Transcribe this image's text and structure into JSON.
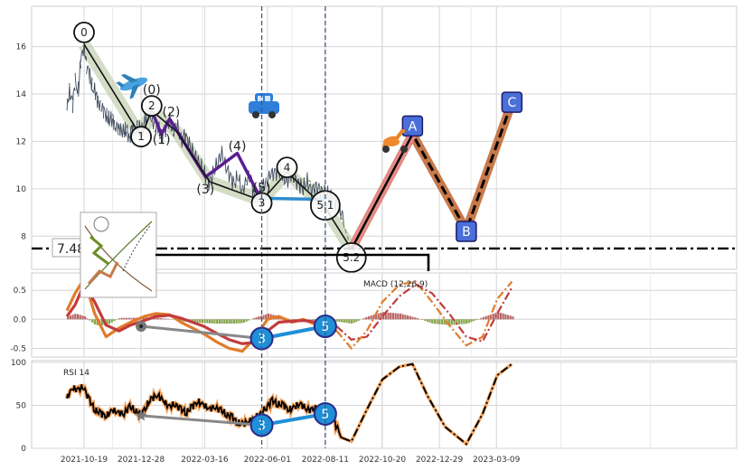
{
  "chart_data": [
    {
      "type": "line",
      "panel": "price",
      "title": "",
      "ylim": [
        6.6,
        17.7
      ],
      "yticks": [
        "8",
        "10",
        "12",
        "14",
        "16"
      ],
      "ytick_values": [
        8,
        10,
        12,
        14,
        16
      ],
      "grid": true,
      "series": [
        {
          "name": "",
          "color": "#3d4a5c",
          "x": [
            "2021-09-28",
            "2021-10-01",
            "2021-10-05",
            "2021-10-08",
            "2021-10-12",
            "2021-10-15",
            "2021-10-19",
            "2021-10-22",
            "2021-10-26",
            "2021-10-29",
            "2021-11-02",
            "2021-11-05",
            "2021-11-09",
            "2021-11-12",
            "2021-11-16",
            "2021-11-19",
            "2021-11-23",
            "2021-11-26",
            "2021-11-30",
            "2021-12-03",
            "2021-12-07",
            "2021-12-10",
            "2021-12-14",
            "2021-12-17",
            "2021-12-21",
            "2021-12-24",
            "2021-12-28",
            "2022-01-02",
            "2022-01-06",
            "2022-01-10",
            "2022-01-14",
            "2022-01-18",
            "2022-01-22",
            "2022-01-27",
            "2022-02-01",
            "2022-02-05",
            "2022-02-10",
            "2022-02-15",
            "2022-02-20",
            "2022-02-25",
            "2022-03-02",
            "2022-03-07",
            "2022-03-12",
            "2022-03-17",
            "2022-03-22",
            "2022-03-27",
            "2022-04-01",
            "2022-04-06",
            "2022-04-11",
            "2022-04-16",
            "2022-04-21",
            "2022-04-26",
            "2022-05-01",
            "2022-05-06",
            "2022-05-11",
            "2022-05-16",
            "2022-05-21",
            "2022-05-26",
            "2022-05-31",
            "2022-06-05",
            "2022-06-10",
            "2022-06-15",
            "2022-06-20",
            "2022-06-25",
            "2022-06-30",
            "2022-07-05",
            "2022-07-10",
            "2022-07-15",
            "2022-07-20",
            "2022-07-25",
            "2022-07-30",
            "2022-08-04",
            "2022-08-09",
            "2022-08-14",
            "2022-08-19",
            "2022-08-24",
            "2022-08-29",
            "2022-09-03"
          ],
          "values": [
            13.3,
            14.2,
            13.6,
            14.5,
            14.1,
            15.4,
            16.1,
            15.2,
            14.8,
            14.3,
            14.0,
            13.7,
            13.5,
            13.3,
            13.1,
            12.8,
            13.0,
            12.7,
            12.5,
            12.6,
            12.3,
            12.5,
            12.2,
            12.6,
            12.4,
            12.7,
            12.3,
            12.9,
            13.3,
            13.0,
            12.6,
            12.5,
            12.2,
            12.6,
            12.9,
            12.4,
            12.7,
            12.0,
            12.3,
            11.9,
            11.5,
            11.2,
            10.9,
            10.6,
            10.3,
            10.7,
            11.1,
            11.5,
            10.9,
            10.6,
            10.2,
            10.5,
            9.9,
            10.3,
            10.6,
            9.7,
            9.5,
            10.1,
            10.3,
            10.6,
            10.7,
            10.8,
            10.5,
            10.3,
            10.6,
            10.4,
            10.2,
            10.0,
            10.3,
            9.9,
            10.1,
            10.0,
            9.8,
            9.7,
            9.6,
            9.4,
            9.1,
            8.7
          ]
        }
      ],
      "waves": [
        {
          "name": "impulse",
          "color": "#000000",
          "points": [
            [
              "2021-10-19",
              16.1
            ],
            [
              "2021-12-28",
              12.2
            ],
            [
              "2022-01-10",
              13.3
            ],
            [
              "2022-02-10",
              12.4
            ],
            [
              "2022-03-22",
              10.3
            ],
            [
              "2022-05-25",
              9.5
            ],
            [
              "2022-06-25",
              10.7
            ],
            [
              "2022-08-11",
              9.2
            ],
            [
              "2022-09-12",
              7.45
            ]
          ]
        },
        {
          "name": "sub-waves",
          "color": "#5b1e91",
          "points": [
            [
              "2022-01-10",
              13.3
            ],
            [
              "2022-01-22",
              12.3
            ],
            [
              "2022-02-01",
              12.95
            ],
            [
              "2022-03-17",
              10.5
            ],
            [
              "2022-04-25",
              11.5
            ],
            [
              "2022-05-25",
              9.5
            ]
          ]
        },
        {
          "name": "wave-3-4-link",
          "color": "#2e8bcf",
          "points": [
            [
              "2022-05-25",
              9.6
            ],
            [
              "2022-08-11",
              9.55
            ]
          ]
        },
        {
          "name": "abc",
          "color": "#c8794a",
          "points": [
            [
              "2022-09-12",
              7.45
            ],
            [
              "2022-11-26",
              12.3
            ],
            [
              "2023-01-31",
              8.25
            ],
            [
              "2023-03-28",
              13.65
            ]
          ]
        },
        {
          "name": "a-leg-highlight",
          "color": "#e58a8a",
          "points": [
            [
              "2022-09-12",
              7.45
            ],
            [
              "2022-11-26",
              12.3
            ]
          ]
        }
      ],
      "wave_labels": [
        {
          "text": "0",
          "x": "2021-10-19",
          "y": 16.6,
          "style": "circle"
        },
        {
          "text": "1",
          "x": "2021-12-28",
          "y": 12.2,
          "style": "circle"
        },
        {
          "text": "2",
          "x": "2022-01-10",
          "y": 13.5,
          "style": "circle"
        },
        {
          "text": "3",
          "x": "2022-05-25",
          "y": 9.4,
          "style": "circle"
        },
        {
          "text": "4",
          "x": "2022-06-25",
          "y": 10.9,
          "style": "circle"
        },
        {
          "text": "5.1",
          "x": "2022-08-11",
          "y": 9.3,
          "style": "circle"
        },
        {
          "text": "5.2",
          "x": "2022-09-12",
          "y": 7.1,
          "style": "circle"
        },
        {
          "text": "(0)",
          "x": "2022-01-10",
          "y": 14.2,
          "style": "plain"
        },
        {
          "text": "(1)",
          "x": "2022-01-22",
          "y": 12.1,
          "style": "plain"
        },
        {
          "text": "(2)",
          "x": "2022-02-03",
          "y": 13.25,
          "style": "plain"
        },
        {
          "text": "(3)",
          "x": "2022-03-17",
          "y": 10.0,
          "style": "plain"
        },
        {
          "text": "(4)",
          "x": "2022-04-25",
          "y": 11.8,
          "style": "plain"
        },
        {
          "text": "(5)",
          "x": "2022-05-25",
          "y": 10.05,
          "style": "plain"
        },
        {
          "text": "A",
          "x": "2022-11-26",
          "y": 12.65,
          "style": "box"
        },
        {
          "text": "B",
          "x": "2023-01-31",
          "y": 8.2,
          "style": "box"
        },
        {
          "text": "C",
          "x": "2023-03-28",
          "y": 13.65,
          "style": "box"
        }
      ],
      "hline": {
        "value": 7.48,
        "label": "7.48",
        "style": "dash-dot"
      },
      "vlines": [
        "2022-05-25",
        "2022-08-11"
      ],
      "icons": [
        "airplane-icon",
        "car-icon",
        "scooter-icon"
      ]
    },
    {
      "type": "bar",
      "panel": "macd",
      "title": "MACD (12,26,9)",
      "ylim": [
        -0.65,
        0.8
      ],
      "yticks": [
        "0.5",
        "0.0",
        "-0.5"
      ],
      "ytick_values": [
        0.5,
        0.0,
        -0.5
      ],
      "series": [
        {
          "name": "",
          "color": "#e07b2a",
          "x": [
            "2021-09-28",
            "2021-10-08",
            "2021-10-19",
            "2021-11-01",
            "2021-11-15",
            "2021-12-01",
            "2021-12-15",
            "2022-01-01",
            "2022-01-15",
            "2022-02-01",
            "2022-02-15",
            "2022-03-01",
            "2022-03-15",
            "2022-04-01",
            "2022-04-15",
            "2022-05-01",
            "2022-05-15",
            "2022-06-01",
            "2022-06-15",
            "2022-07-01",
            "2022-07-15",
            "2022-08-01",
            "2022-08-11",
            "2022-08-25",
            "2022-09-12",
            "2022-10-01",
            "2022-10-20",
            "2022-11-10",
            "2022-11-30",
            "2022-12-20",
            "2023-01-10",
            "2023-01-31",
            "2023-02-20",
            "2023-03-10",
            "2023-03-28"
          ],
          "values": [
            0.15,
            0.45,
            0.7,
            0.1,
            -0.3,
            -0.15,
            -0.05,
            0.05,
            0.1,
            0.08,
            -0.05,
            -0.15,
            -0.25,
            -0.4,
            -0.5,
            -0.55,
            -0.35,
            0.0,
            0.05,
            -0.05,
            0.0,
            -0.1,
            -0.1,
            -0.2,
            -0.5,
            -0.2,
            0.3,
            0.6,
            0.65,
            0.3,
            -0.1,
            -0.45,
            -0.3,
            0.35,
            0.65
          ]
        },
        {
          "name": "",
          "color": "#c23b3b",
          "x": [
            "2021-09-28",
            "2021-10-08",
            "2021-10-19",
            "2021-11-01",
            "2021-11-15",
            "2021-12-01",
            "2021-12-15",
            "2022-01-01",
            "2022-01-15",
            "2022-02-01",
            "2022-02-15",
            "2022-03-01",
            "2022-03-15",
            "2022-04-01",
            "2022-04-15",
            "2022-05-01",
            "2022-05-15",
            "2022-06-01",
            "2022-06-15",
            "2022-07-01",
            "2022-07-15",
            "2022-08-01",
            "2022-08-11",
            "2022-08-25",
            "2022-09-12",
            "2022-10-01",
            "2022-10-20",
            "2022-11-10",
            "2022-11-30",
            "2022-12-20",
            "2023-01-10",
            "2023-01-31",
            "2023-02-20",
            "2023-03-10",
            "2023-03-28"
          ],
          "values": [
            0.05,
            0.25,
            0.6,
            0.3,
            -0.1,
            -0.2,
            -0.1,
            -0.02,
            0.05,
            0.07,
            0.02,
            -0.05,
            -0.12,
            -0.25,
            -0.35,
            -0.42,
            -0.4,
            -0.2,
            -0.05,
            -0.03,
            -0.02,
            -0.05,
            -0.07,
            -0.12,
            -0.35,
            -0.3,
            0.05,
            0.4,
            0.6,
            0.45,
            0.1,
            -0.3,
            -0.38,
            0.1,
            0.55
          ]
        }
      ],
      "histogram": {
        "positive_color": "#a84040",
        "negative_color": "#6b8e23"
      },
      "markers": [
        {
          "text": "3",
          "x": "2022-05-25",
          "y": -0.33
        },
        {
          "text": "5",
          "x": "2022-08-11",
          "y": -0.12
        }
      ]
    },
    {
      "type": "line",
      "panel": "rsi",
      "title": "RSI 14",
      "ylim": [
        0,
        102
      ],
      "yticks": [
        "100",
        "50",
        "0"
      ],
      "ytick_values": [
        100,
        50,
        0
      ],
      "series": [
        {
          "name": "",
          "color": "#000000",
          "x": [
            "2021-09-28",
            "2021-10-05",
            "2021-10-12",
            "2021-10-19",
            "2021-10-26",
            "2021-11-02",
            "2021-11-09",
            "2021-11-16",
            "2021-11-23",
            "2021-11-30",
            "2021-12-07",
            "2021-12-14",
            "2021-12-21",
            "2021-12-28",
            "2022-01-04",
            "2022-01-11",
            "2022-01-18",
            "2022-01-25",
            "2022-02-01",
            "2022-02-08",
            "2022-02-15",
            "2022-02-22",
            "2022-03-01",
            "2022-03-08",
            "2022-03-15",
            "2022-03-22",
            "2022-03-29",
            "2022-04-05",
            "2022-04-12",
            "2022-04-19",
            "2022-04-26",
            "2022-05-03",
            "2022-05-10",
            "2022-05-17",
            "2022-05-24",
            "2022-05-31",
            "2022-06-07",
            "2022-06-14",
            "2022-06-21",
            "2022-06-28",
            "2022-07-05",
            "2022-07-12",
            "2022-07-19",
            "2022-07-26",
            "2022-08-02",
            "2022-08-09",
            "2022-08-16",
            "2022-08-23",
            "2022-09-01",
            "2022-09-12",
            "2022-10-01",
            "2022-10-20",
            "2022-11-10",
            "2022-11-26",
            "2022-12-15",
            "2023-01-05",
            "2023-01-31",
            "2023-02-20",
            "2023-03-10",
            "2023-03-28"
          ],
          "values": [
            58,
            70,
            68,
            72,
            55,
            45,
            40,
            38,
            44,
            42,
            40,
            48,
            45,
            38,
            50,
            58,
            62,
            55,
            48,
            52,
            45,
            42,
            48,
            55,
            50,
            46,
            48,
            44,
            40,
            36,
            30,
            28,
            32,
            35,
            40,
            48,
            55,
            52,
            50,
            45,
            48,
            52,
            46,
            44,
            48,
            40,
            42,
            30,
            12,
            8,
            45,
            80,
            95,
            98,
            60,
            25,
            5,
            40,
            85,
            98
          ]
        }
      ],
      "markers": [
        {
          "text": "3",
          "x": "2022-05-25",
          "y": 27
        },
        {
          "text": "5",
          "x": "2022-08-11",
          "y": 40
        }
      ]
    }
  ],
  "x_axis": {
    "ticks": [
      "2021-10-19",
      "2021-12-28",
      "2022-03-16",
      "2022-06-01",
      "2022-08-11",
      "2022-10-20",
      "2022-12-29",
      "2023-03-09"
    ]
  },
  "colors": {
    "marker_fill": "#1f8fd6",
    "marker_stroke": "#2a2a8a",
    "box_fill": "#4a6fd8",
    "grid": "#d6d6d6",
    "vline": "#3e5a80"
  }
}
